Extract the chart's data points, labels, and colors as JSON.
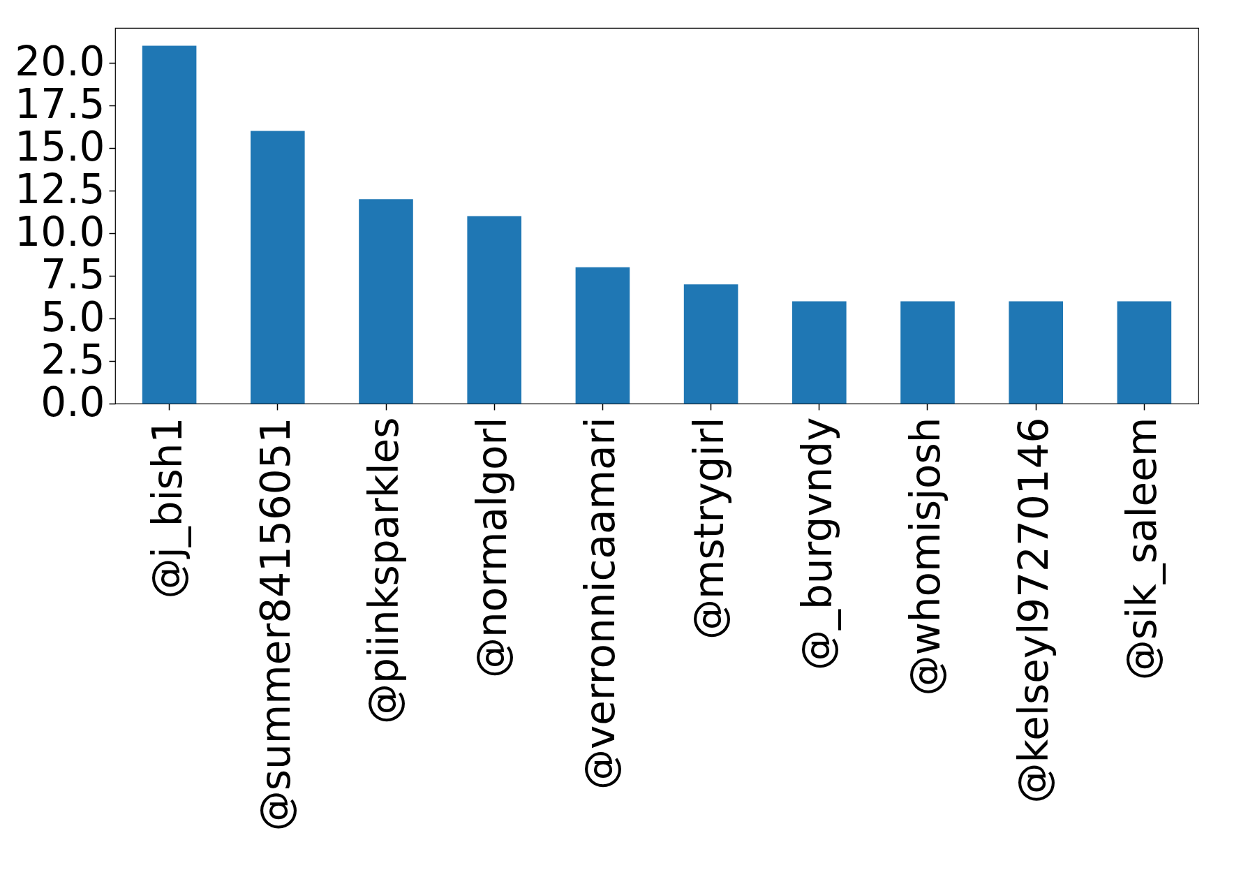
{
  "chart_data": {
    "type": "bar",
    "categories": [
      "@j_bish1",
      "@summer84156051",
      "@piinksparkles",
      "@normalgorl",
      "@verronnicaamari",
      "@mstrygirl",
      "@_burgvndy",
      "@whomisjosh",
      "@kelseyl97270146",
      "@sik_saleem"
    ],
    "values": [
      21,
      16,
      12,
      11,
      8,
      7,
      6,
      6,
      6,
      6
    ],
    "color": "#1f77b4",
    "ylim": [
      0,
      22.05
    ],
    "yticks": [
      {
        "value": 0,
        "label": "0.0"
      },
      {
        "value": 2.5,
        "label": "2.5"
      },
      {
        "value": 5,
        "label": "5.0"
      },
      {
        "value": 7.5,
        "label": "7.5"
      },
      {
        "value": 10,
        "label": "10.0"
      },
      {
        "value": 12.5,
        "label": "12.5"
      },
      {
        "value": 15,
        "label": "15.0"
      },
      {
        "value": 17.5,
        "label": "17.5"
      },
      {
        "value": 20,
        "label": "20.0"
      }
    ],
    "grid": false
  }
}
